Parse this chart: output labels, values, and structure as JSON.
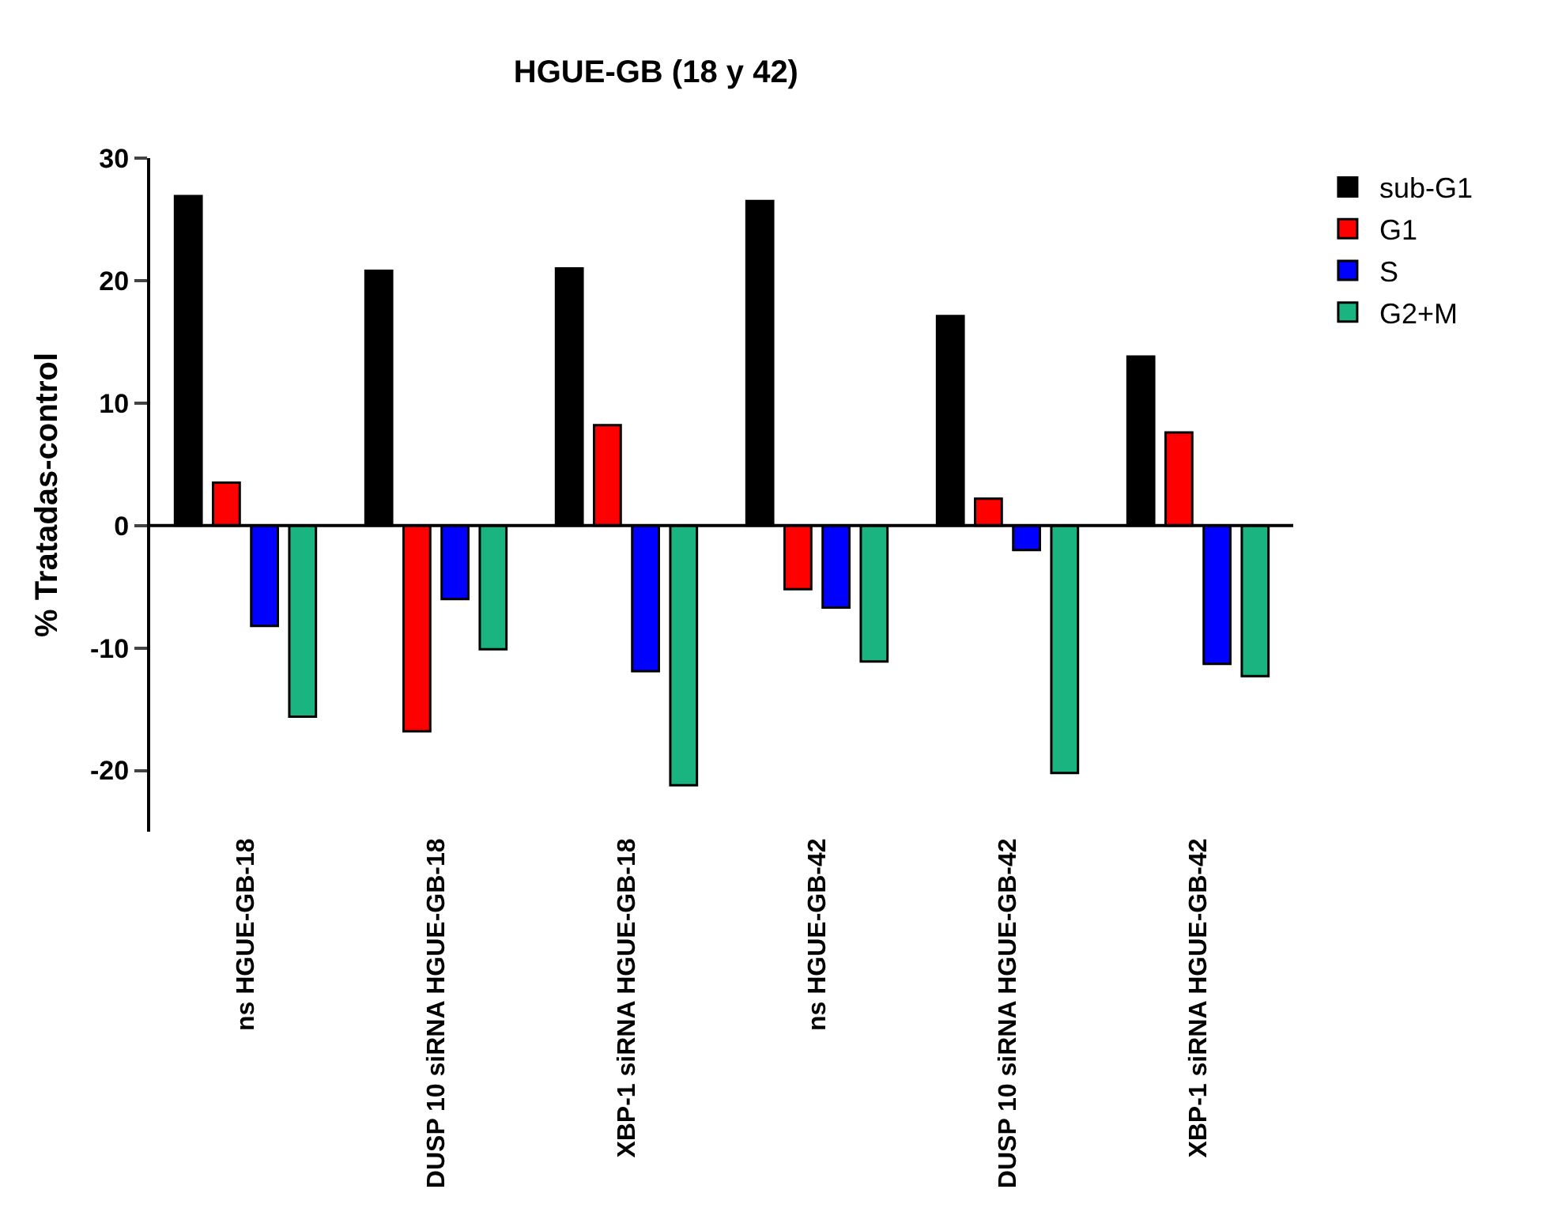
{
  "chart_data": {
    "type": "bar",
    "title": "HGUE-GB (18 y 42)",
    "ylabel": "% Tratadas-control",
    "categories": [
      "ns HGUE-GB-18",
      "DUSP 10 siRNA HGUE-GB-18",
      "XBP-1 siRNA HGUE-GB-18",
      "ns HGUE-GB-42",
      "DUSP 10 siRNA HGUE-GB-42",
      "XBP-1 siRNA HGUE-GB-42"
    ],
    "series": [
      {
        "name": "sub-G1",
        "color": "#000000",
        "values": [
          26.9,
          20.8,
          21.0,
          26.5,
          17.1,
          13.8
        ]
      },
      {
        "name": "G1",
        "color": "#ff0000",
        "values": [
          3.5,
          -16.8,
          8.2,
          -5.2,
          2.2,
          7.6
        ]
      },
      {
        "name": "S",
        "color": "#0000ff",
        "values": [
          -8.2,
          -6.0,
          -11.9,
          -6.7,
          -2.0,
          -11.3
        ]
      },
      {
        "name": "G2+M",
        "color": "#19b47f",
        "values": [
          -15.6,
          -10.1,
          -21.2,
          -11.1,
          -20.2,
          -12.3
        ]
      }
    ],
    "ylim": [
      -25,
      30
    ],
    "yticks": [
      -20,
      -10,
      0,
      10,
      20,
      30
    ],
    "ref_lines": [
      {
        "axis": "y",
        "value": 0,
        "color": "#000000",
        "line_style": "solid"
      }
    ],
    "legend": "top right"
  }
}
